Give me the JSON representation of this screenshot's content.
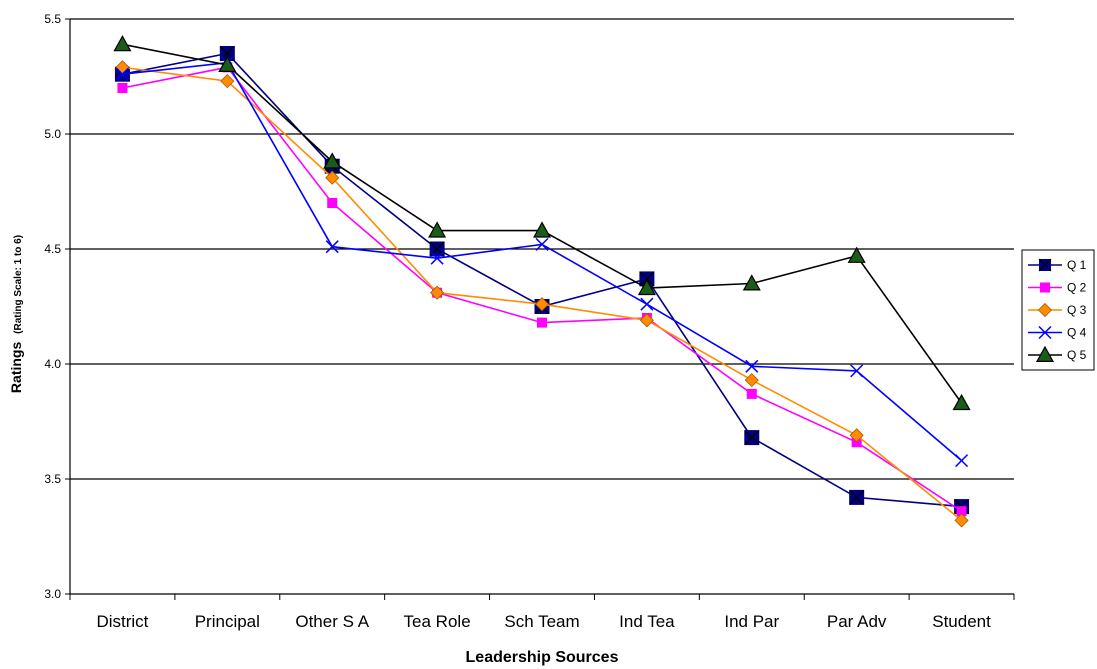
{
  "chart_data": {
    "type": "line",
    "title": "",
    "xlabel": "Leadership Sources",
    "ylabel_main": "Ratings",
    "ylabel_sub": "(Rating Scale: 1 to 6)",
    "categories": [
      "District",
      "Principal",
      "Other S A",
      "Tea Role",
      "Sch Team",
      "Ind Tea",
      "Ind Par",
      "Par Adv",
      "Student"
    ],
    "ylim": [
      3.0,
      5.5
    ],
    "yticks": [
      "3.0",
      "3.5",
      "4.0",
      "4.5",
      "5.0",
      "5.5"
    ],
    "grid": true,
    "legend_position": "right",
    "series": [
      {
        "name": "Q 1",
        "color": "#000080",
        "marker": "square-x",
        "values": [
          5.26,
          5.35,
          4.86,
          4.5,
          4.25,
          4.37,
          3.68,
          3.42,
          3.38
        ]
      },
      {
        "name": "Q 2",
        "color": "#ff00ff",
        "marker": "square",
        "values": [
          5.2,
          5.29,
          4.7,
          4.31,
          4.18,
          4.2,
          3.87,
          3.66,
          3.36
        ]
      },
      {
        "name": "Q 3",
        "color": "#ff8c00",
        "marker": "diamond",
        "values": [
          5.29,
          5.23,
          4.81,
          4.31,
          4.26,
          4.19,
          3.93,
          3.69,
          3.32
        ]
      },
      {
        "name": "Q 4",
        "color": "#0000ff",
        "marker": "x",
        "values": [
          5.26,
          5.31,
          4.51,
          4.46,
          4.52,
          4.26,
          3.99,
          3.97,
          3.58
        ]
      },
      {
        "name": "Q 5",
        "color": "#000000",
        "marker": "triangle",
        "values": [
          5.39,
          5.3,
          4.88,
          4.58,
          4.58,
          4.33,
          4.35,
          4.47,
          3.83
        ]
      }
    ]
  }
}
